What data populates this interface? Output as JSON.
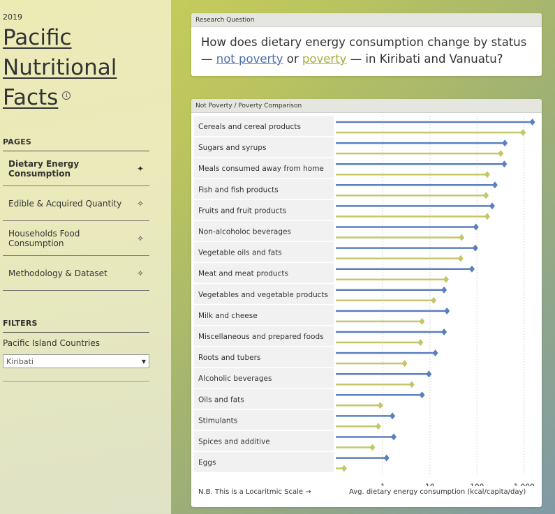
{
  "sidebar": {
    "year": "2019",
    "title": "Pacific Nutritional Facts",
    "pages_label": "PAGES",
    "nav": [
      {
        "label": "Dietary Energy Consumption",
        "active": true,
        "icon": "filled-diamond-icon"
      },
      {
        "label": "Edible & Acquired Quantity",
        "active": false,
        "icon": "outline-diamond-icon"
      },
      {
        "label": "Households Food Consumption",
        "active": false,
        "icon": "outline-diamond-icon"
      },
      {
        "label": "Methodology & Dataset",
        "active": false,
        "icon": "outline-diamond-icon"
      }
    ],
    "filters_label": "FILTERS",
    "filter_name": "Pacific Island Countries",
    "filter_value": "Kiribati"
  },
  "question": {
    "header": "Research Question",
    "text_before": "How does dietary energy consumption change by status —",
    "link_not_poverty": "not poverty",
    "or_word": "or",
    "link_poverty": "poverty",
    "text_after": "— in Kiribati and Vanuatu?"
  },
  "chart_panel": {
    "header": "Not Poverty / Poverty Comparison",
    "footnote": "N.B. This is a Locaritmic Scale →"
  },
  "colors": {
    "not_poverty": "#5b7fbf",
    "poverty": "#c4c768"
  },
  "chart_data": {
    "type": "bar",
    "scale": "log",
    "xlabel": "Avg. dietary energy consumption (kcal/capita/day)",
    "xlim": [
      0.1,
      2000
    ],
    "xticks": [
      1,
      10,
      100,
      1000
    ],
    "xtick_labels": [
      "1",
      "10",
      "100",
      "1,000"
    ],
    "categories": [
      "Cereals and cereal products",
      "Sugars and syrups",
      "Meals consumed away from home",
      "Fish and fish products",
      "Fruits and fruit products",
      "Non-alcoholoc beverages",
      "Vegetable oils and fats",
      "Meat and meat products",
      "Vegetables and vegetable products",
      "Milk and cheese",
      "Miscellaneous and prepared foods",
      "Roots and tubers",
      "Alcoholic beverages",
      "Oils and fats",
      "Stimulants",
      "Spices and additive",
      "Eggs"
    ],
    "series": [
      {
        "key": "not_poverty",
        "values": [
          1500,
          390,
          380,
          240,
          210,
          95,
          92,
          78,
          20,
          23,
          20,
          13,
          9.5,
          6.8,
          1.6,
          1.7,
          1.2
        ]
      },
      {
        "key": "poverty",
        "values": [
          950,
          320,
          165,
          155,
          165,
          47,
          45,
          22,
          12,
          6.8,
          6.3,
          2.9,
          4.1,
          0.88,
          0.8,
          0.6,
          0.15
        ]
      }
    ]
  }
}
